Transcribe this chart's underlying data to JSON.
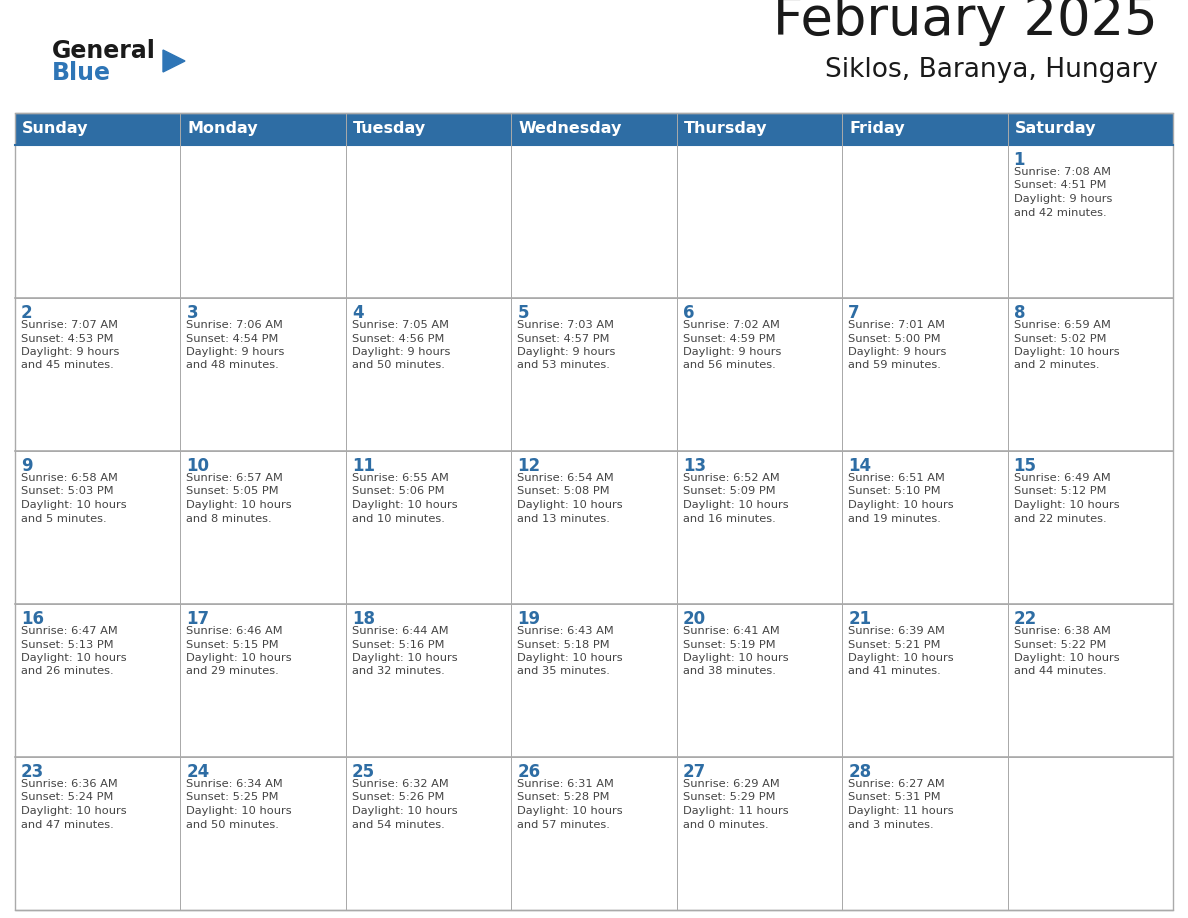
{
  "title": "February 2025",
  "subtitle": "Siklos, Baranya, Hungary",
  "days_of_week": [
    "Sunday",
    "Monday",
    "Tuesday",
    "Wednesday",
    "Thursday",
    "Friday",
    "Saturday"
  ],
  "header_bg": "#2E6DA4",
  "header_text": "#FFFFFF",
  "cell_bg": "#FFFFFF",
  "border_color": "#AAAAAA",
  "day_num_color": "#2E6DA4",
  "info_text_color": "#444444",
  "title_color": "#1a1a1a",
  "logo_general_color": "#1a1a1a",
  "logo_blue_color": "#2E75B6",
  "calendar": [
    [
      null,
      null,
      null,
      null,
      null,
      null,
      1
    ],
    [
      2,
      3,
      4,
      5,
      6,
      7,
      8
    ],
    [
      9,
      10,
      11,
      12,
      13,
      14,
      15
    ],
    [
      16,
      17,
      18,
      19,
      20,
      21,
      22
    ],
    [
      23,
      24,
      25,
      26,
      27,
      28,
      null
    ]
  ],
  "sun_data": {
    "1": {
      "sunrise": "7:08 AM",
      "sunset": "4:51 PM",
      "daylight": "9 hours and 42 minutes"
    },
    "2": {
      "sunrise": "7:07 AM",
      "sunset": "4:53 PM",
      "daylight": "9 hours and 45 minutes"
    },
    "3": {
      "sunrise": "7:06 AM",
      "sunset": "4:54 PM",
      "daylight": "9 hours and 48 minutes"
    },
    "4": {
      "sunrise": "7:05 AM",
      "sunset": "4:56 PM",
      "daylight": "9 hours and 50 minutes"
    },
    "5": {
      "sunrise": "7:03 AM",
      "sunset": "4:57 PM",
      "daylight": "9 hours and 53 minutes"
    },
    "6": {
      "sunrise": "7:02 AM",
      "sunset": "4:59 PM",
      "daylight": "9 hours and 56 minutes"
    },
    "7": {
      "sunrise": "7:01 AM",
      "sunset": "5:00 PM",
      "daylight": "9 hours and 59 minutes"
    },
    "8": {
      "sunrise": "6:59 AM",
      "sunset": "5:02 PM",
      "daylight": "10 hours and 2 minutes"
    },
    "9": {
      "sunrise": "6:58 AM",
      "sunset": "5:03 PM",
      "daylight": "10 hours and 5 minutes"
    },
    "10": {
      "sunrise": "6:57 AM",
      "sunset": "5:05 PM",
      "daylight": "10 hours and 8 minutes"
    },
    "11": {
      "sunrise": "6:55 AM",
      "sunset": "5:06 PM",
      "daylight": "10 hours and 10 minutes"
    },
    "12": {
      "sunrise": "6:54 AM",
      "sunset": "5:08 PM",
      "daylight": "10 hours and 13 minutes"
    },
    "13": {
      "sunrise": "6:52 AM",
      "sunset": "5:09 PM",
      "daylight": "10 hours and 16 minutes"
    },
    "14": {
      "sunrise": "6:51 AM",
      "sunset": "5:10 PM",
      "daylight": "10 hours and 19 minutes"
    },
    "15": {
      "sunrise": "6:49 AM",
      "sunset": "5:12 PM",
      "daylight": "10 hours and 22 minutes"
    },
    "16": {
      "sunrise": "6:47 AM",
      "sunset": "5:13 PM",
      "daylight": "10 hours and 26 minutes"
    },
    "17": {
      "sunrise": "6:46 AM",
      "sunset": "5:15 PM",
      "daylight": "10 hours and 29 minutes"
    },
    "18": {
      "sunrise": "6:44 AM",
      "sunset": "5:16 PM",
      "daylight": "10 hours and 32 minutes"
    },
    "19": {
      "sunrise": "6:43 AM",
      "sunset": "5:18 PM",
      "daylight": "10 hours and 35 minutes"
    },
    "20": {
      "sunrise": "6:41 AM",
      "sunset": "5:19 PM",
      "daylight": "10 hours and 38 minutes"
    },
    "21": {
      "sunrise": "6:39 AM",
      "sunset": "5:21 PM",
      "daylight": "10 hours and 41 minutes"
    },
    "22": {
      "sunrise": "6:38 AM",
      "sunset": "5:22 PM",
      "daylight": "10 hours and 44 minutes"
    },
    "23": {
      "sunrise": "6:36 AM",
      "sunset": "5:24 PM",
      "daylight": "10 hours and 47 minutes"
    },
    "24": {
      "sunrise": "6:34 AM",
      "sunset": "5:25 PM",
      "daylight": "10 hours and 50 minutes"
    },
    "25": {
      "sunrise": "6:32 AM",
      "sunset": "5:26 PM",
      "daylight": "10 hours and 54 minutes"
    },
    "26": {
      "sunrise": "6:31 AM",
      "sunset": "5:28 PM",
      "daylight": "10 hours and 57 minutes"
    },
    "27": {
      "sunrise": "6:29 AM",
      "sunset": "5:29 PM",
      "daylight": "11 hours and 0 minutes"
    },
    "28": {
      "sunrise": "6:27 AM",
      "sunset": "5:31 PM",
      "daylight": "11 hours and 3 minutes"
    }
  }
}
